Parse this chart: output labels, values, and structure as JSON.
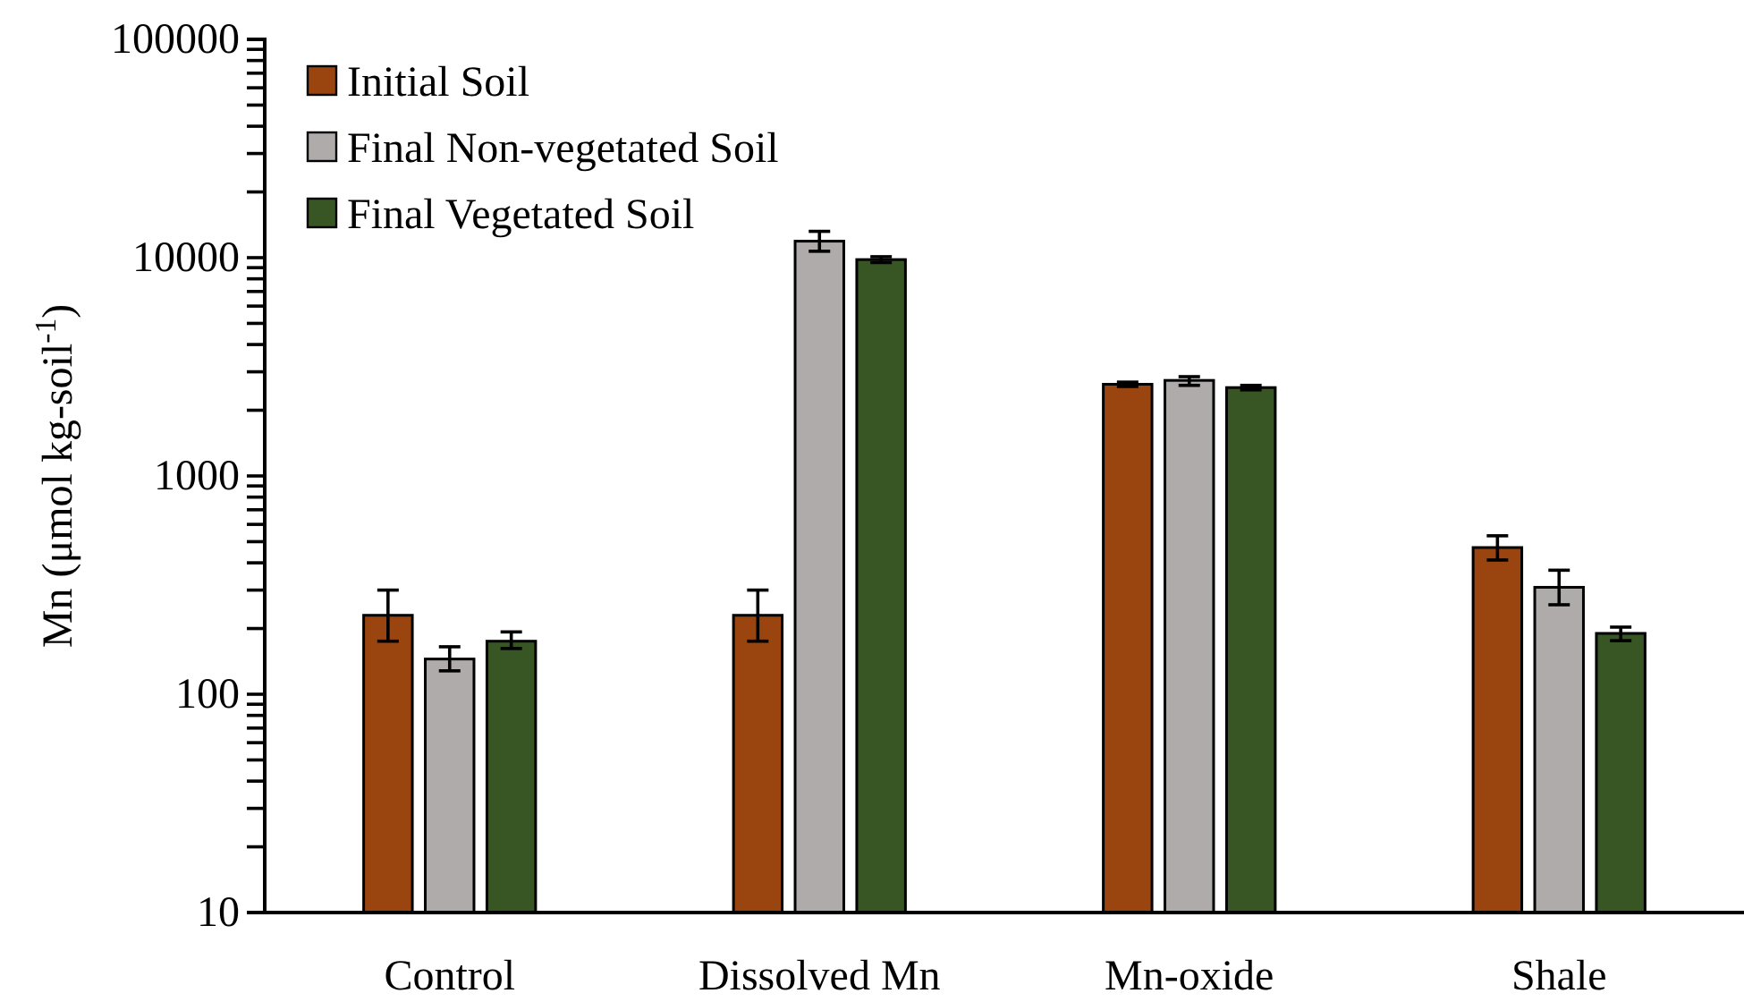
{
  "chart_data": {
    "type": "bar",
    "ylabel": "Mn (μmol kg-soil$^{-1}$)",
    "categories": [
      "Control",
      "Dissolved Mn",
      "Mn-oxide",
      "Shale"
    ],
    "series": [
      {
        "name": "Initial Soil",
        "color": "#9a4510",
        "values": [
          230,
          230,
          2630,
          470
        ],
        "errors": [
          [
            175,
            300
          ],
          [
            175,
            300
          ],
          [
            2570,
            2690
          ],
          [
            412,
            532
          ]
        ]
      },
      {
        "name": "Final Non-vegetated Soil",
        "color": "#afabab",
        "values": [
          145,
          11900,
          2740,
          309
        ],
        "errors": [
          [
            128,
            165
          ],
          [
            10700,
            13200
          ],
          [
            2600,
            2850
          ],
          [
            257,
            370
          ]
        ]
      },
      {
        "name": "Final Vegetated Soil",
        "color": "#375623",
        "values": [
          175,
          9800,
          2540,
          190
        ],
        "errors": [
          [
            162,
            193
          ],
          [
            9500,
            10100
          ],
          [
            2480,
            2600
          ],
          [
            176,
            203
          ]
        ]
      }
    ],
    "log": true,
    "ylim": [
      10,
      100000
    ],
    "yticks": [
      10,
      {
        "value": 20,
        "label": null
      },
      {
        "value": 30,
        "label": null
      },
      {
        "value": 40,
        "label": null
      },
      {
        "value": 50,
        "label": null
      },
      {
        "value": 60,
        "label": null
      },
      {
        "value": 70,
        "label": null
      },
      {
        "value": 80,
        "label": null
      },
      {
        "value": 90,
        "label": null
      },
      100,
      {
        "value": 200,
        "label": null
      },
      {
        "value": 300,
        "label": null
      },
      {
        "value": 400,
        "label": null
      },
      {
        "value": 500,
        "label": null
      },
      {
        "value": 600,
        "label": null
      },
      {
        "value": 700,
        "label": null
      },
      {
        "value": 800,
        "label": null
      },
      {
        "value": 900,
        "label": null
      },
      1000,
      {
        "value": 2000,
        "label": null
      },
      {
        "value": 3000,
        "label": null
      },
      {
        "value": 4000,
        "label": null
      },
      {
        "value": 5000,
        "label": null
      },
      {
        "value": 6000,
        "label": null
      },
      {
        "value": 7000,
        "label": null
      },
      {
        "value": 8000,
        "label": null
      },
      {
        "value": 9000,
        "label": null
      },
      10000,
      {
        "value": 20000,
        "label": null
      },
      {
        "value": 30000,
        "label": null
      },
      {
        "value": 40000,
        "label": null
      },
      {
        "value": 50000,
        "label": null
      },
      {
        "value": 60000,
        "label": null
      },
      {
        "value": 70000,
        "label": null
      },
      {
        "value": 80000,
        "label": null
      },
      {
        "value": 90000,
        "label": null
      },
      100000
    ],
    "legend": "top left",
    "grid": false
  }
}
